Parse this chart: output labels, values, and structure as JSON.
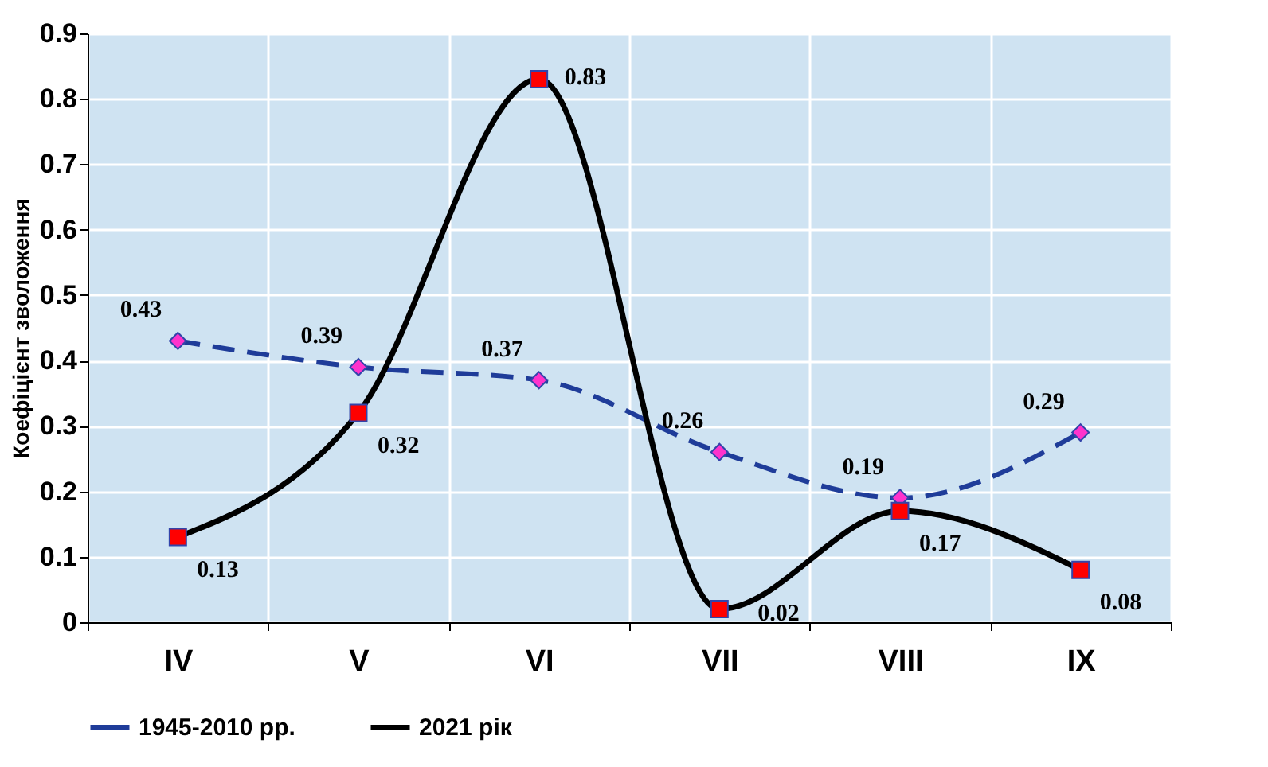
{
  "chart_data": {
    "type": "line",
    "ylabel": "Коефіцієнт зволоження",
    "categories": [
      "IV",
      "V",
      "VI",
      "VII",
      "VIII",
      "IX"
    ],
    "series": [
      {
        "name": "1945-2010 рр.",
        "color": "#1f3c99",
        "values": [
          0.43,
          0.39,
          0.37,
          0.26,
          0.19,
          0.29
        ],
        "line_style": "dashed",
        "marker": "diamond"
      },
      {
        "name": "2021 рік",
        "color": "#000000",
        "values": [
          0.13,
          0.32,
          0.83,
          0.02,
          0.17,
          0.08
        ],
        "line_style": "solid",
        "marker": "square"
      }
    ],
    "ylim": [
      0,
      0.9
    ],
    "yticks": [
      0,
      0.1,
      0.2,
      0.3,
      0.4,
      0.5,
      0.6,
      0.7,
      0.8,
      0.9
    ],
    "grid": true,
    "legend": "bottom",
    "data_labels": true
  }
}
